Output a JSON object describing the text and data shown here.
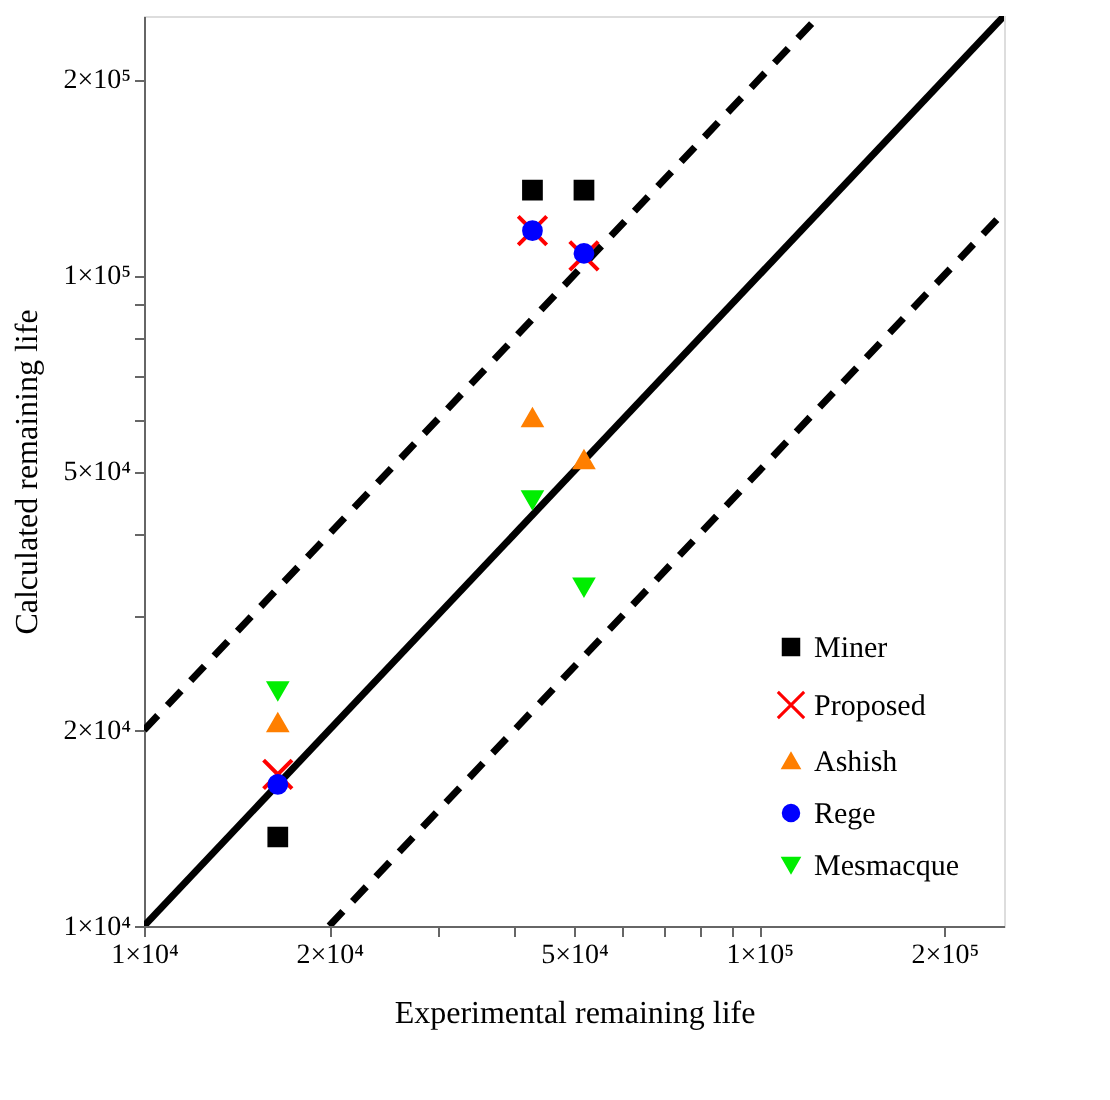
{
  "chart_data": {
    "type": "scatter",
    "xlabel": "Experimental remaining life",
    "ylabel": "Calculated remaining life",
    "log": "xy",
    "grid": false,
    "legend": "bottom right",
    "xlim": [
      10000,
      250000
    ],
    "ylim": [
      10000,
      250000
    ],
    "xticks": [
      {
        "value": 10000,
        "label": "1×10⁴"
      },
      {
        "value": 20000,
        "label": "2×10⁴"
      },
      {
        "value": 30000,
        "label": null
      },
      {
        "value": 40000,
        "label": null
      },
      {
        "value": 50000,
        "label": "5×10⁴"
      },
      {
        "value": 60000,
        "label": null
      },
      {
        "value": 70000,
        "label": null
      },
      {
        "value": 80000,
        "label": null
      },
      {
        "value": 90000,
        "label": null
      },
      {
        "value": 100000,
        "label": "1×10⁵"
      },
      {
        "value": 200000,
        "label": "2×10⁵"
      }
    ],
    "yticks": [
      {
        "value": 10000,
        "label": "1×10⁴"
      },
      {
        "value": 20000,
        "label": "2×10⁴"
      },
      {
        "value": 30000,
        "label": null
      },
      {
        "value": 40000,
        "label": null
      },
      {
        "value": 50000,
        "label": "5×10⁴"
      },
      {
        "value": 60000,
        "label": null
      },
      {
        "value": 70000,
        "label": null
      },
      {
        "value": 80000,
        "label": null
      },
      {
        "value": 90000,
        "label": null
      },
      {
        "value": 100000,
        "label": "1×10⁵"
      },
      {
        "value": 200000,
        "label": "2×10⁵"
      }
    ],
    "series": [
      {
        "name": "Miner",
        "color": "#000000",
        "marker": "square",
        "x": [
          16500,
          42800,
          51900
        ],
        "values": [
          13700,
          135000,
          135000
        ]
      },
      {
        "name": "Proposed",
        "color": "#ff0000",
        "marker": "cross",
        "x": [
          16500,
          42800,
          51900
        ],
        "values": [
          17100,
          117000,
          107000
        ]
      },
      {
        "name": "Ashish",
        "color": "#ff7f00",
        "marker": "triangle",
        "x": [
          16500,
          42800,
          51900
        ],
        "values": [
          20500,
          60300,
          52000
        ]
      },
      {
        "name": "Rege",
        "color": "#0000ff",
        "marker": "circle",
        "x": [
          16500,
          42800,
          51900
        ],
        "values": [
          16500,
          117000,
          108000
        ]
      },
      {
        "name": "Mesmacque",
        "color": "#00ee00",
        "marker": "triangle-down",
        "x": [
          16500,
          42800,
          51900
        ],
        "values": [
          23000,
          45200,
          33200
        ]
      },
      {
        "type": "line",
        "color": "#000000",
        "line_style": "dashed",
        "x": [
          10000,
          125000
        ],
        "values": [
          20000,
          250000
        ]
      },
      {
        "type": "line",
        "color": "#000000",
        "line_style": "solid",
        "x": [
          10000,
          250000
        ],
        "values": [
          10000,
          250000
        ]
      },
      {
        "type": "line",
        "color": "#000000",
        "line_style": "dashed",
        "x": [
          20000,
          250000
        ],
        "values": [
          10000,
          125000
        ]
      }
    ]
  }
}
